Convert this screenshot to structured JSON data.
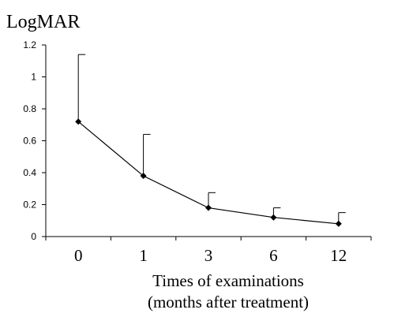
{
  "chart_data": {
    "type": "line",
    "ylabel": "LogMAR",
    "xlabel_line1": "Times of examinations",
    "xlabel_line2": "(months after treatment)",
    "categories": [
      "0",
      "1",
      "3",
      "6",
      "12"
    ],
    "values": [
      0.72,
      0.38,
      0.18,
      0.12,
      0.08
    ],
    "error_upper": [
      1.14,
      0.64,
      0.275,
      0.18,
      0.15
    ],
    "ylim": [
      0,
      1.2
    ],
    "yticks": [
      "0",
      "0.2",
      "0.4",
      "0.6",
      "0.8",
      "1",
      "1.2"
    ],
    "grid": false,
    "colors": {
      "line": "#000000",
      "axis": "#000000"
    }
  }
}
